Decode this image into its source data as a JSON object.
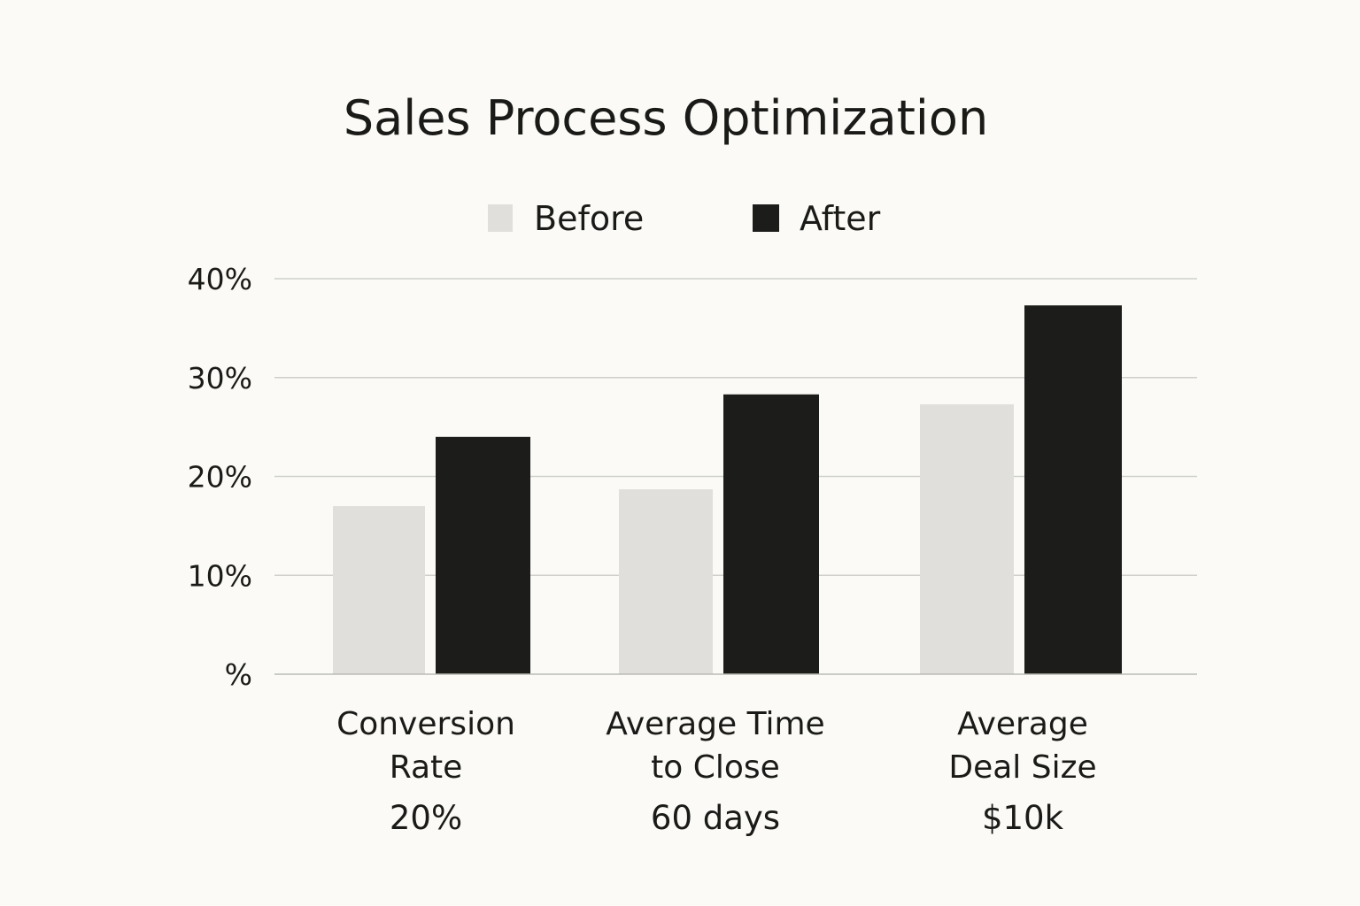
{
  "chart_data": {
    "type": "bar",
    "title": "Sales Process Optimization",
    "xlabel": "",
    "ylabel": "",
    "ylim": [
      0,
      40
    ],
    "yticks": [
      0,
      10,
      20,
      30,
      40
    ],
    "ytick_labels": [
      "%",
      "10%",
      "20%",
      "30%",
      "40%"
    ],
    "grid": true,
    "legend_position": "top-center",
    "categories": [
      {
        "lines": [
          "Conversion",
          "Rate"
        ],
        "value_label": "20%"
      },
      {
        "lines": [
          "Average Time",
          "to Close"
        ],
        "value_label": "60 days"
      },
      {
        "lines": [
          "Average",
          "Deal Size"
        ],
        "value_label": "$10k"
      }
    ],
    "series": [
      {
        "name": "Before",
        "color": "#e0dfdb",
        "values": [
          17,
          18.7,
          27.3
        ]
      },
      {
        "name": "After",
        "color": "#1c1c1a",
        "values": [
          24,
          28.3,
          37.3
        ]
      }
    ]
  }
}
